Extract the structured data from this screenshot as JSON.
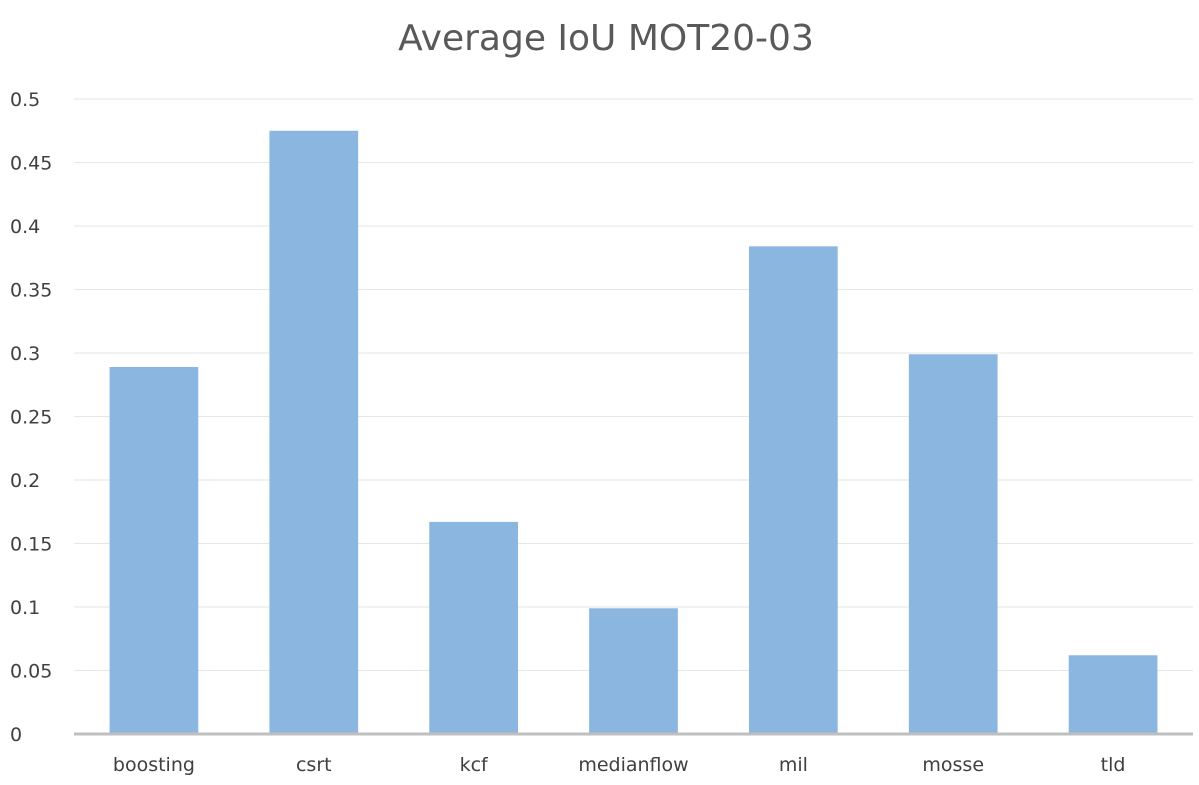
{
  "chart_data": {
    "type": "bar",
    "title": "Average IoU MOT20-03",
    "xlabel": "",
    "ylabel": "",
    "categories": [
      "boosting",
      "csrt",
      "kcf",
      "medianflow",
      "mil",
      "mosse",
      "tld"
    ],
    "values": [
      0.289,
      0.475,
      0.167,
      0.099,
      0.384,
      0.299,
      0.062
    ],
    "ylim": [
      0,
      0.5
    ],
    "yticks": [
      "0",
      "0.05",
      "0.1",
      "0.15",
      "0.2",
      "0.25",
      "0.3",
      "0.35",
      "0.4",
      "0.45",
      "0.5"
    ],
    "grid": true,
    "legend": "none",
    "bar_color": "#8bb6e0",
    "grid_color": "#e6e6e6",
    "axis_color": "#bfbfbf"
  }
}
